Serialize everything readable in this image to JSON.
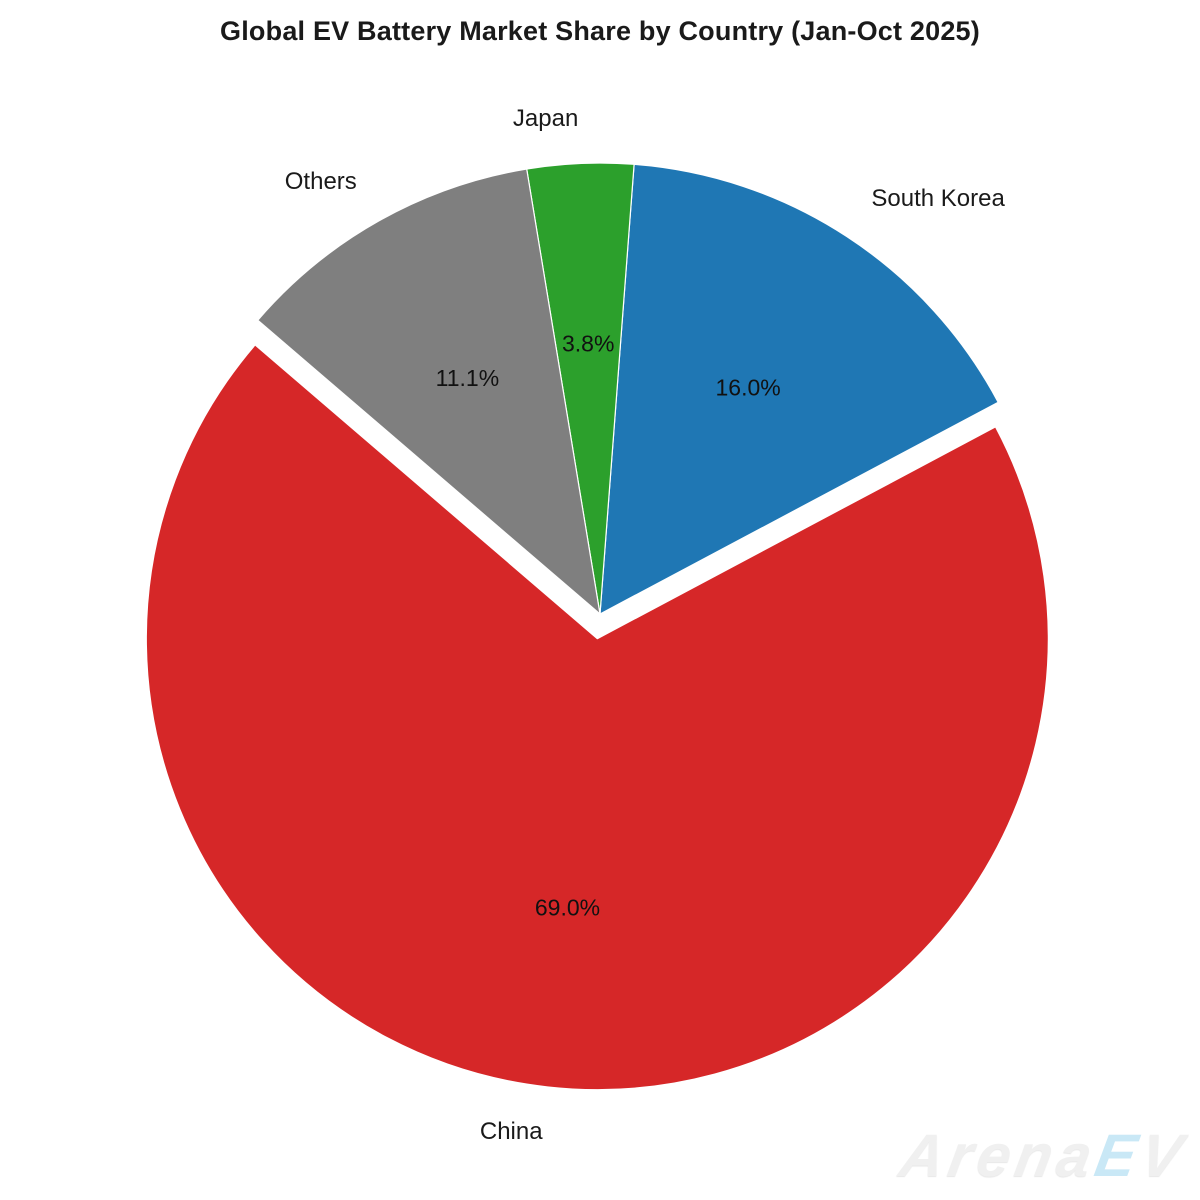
{
  "page": {
    "background_color": "#ffffff"
  },
  "chart_data": {
    "type": "pie",
    "title": "Global EV Battery Market Share by Country (Jan-Oct 2025)",
    "direction": "counterclockwise",
    "start_angle_deg": 28,
    "label_distance": 1.1,
    "pct_distance": 0.6,
    "legend": "none",
    "slices": [
      {
        "label": "South Korea",
        "value": 16.0,
        "pct_label": "16.0%",
        "color": "#1f77b4",
        "explode": 0
      },
      {
        "label": "Japan",
        "value": 3.8,
        "pct_label": "3.8%",
        "color": "#2ca02c",
        "explode": 0
      },
      {
        "label": "Others",
        "value": 11.1,
        "pct_label": "11.1%",
        "color": "#7f7f7f",
        "explode": 0
      },
      {
        "label": "China",
        "value": 69.0,
        "pct_label": "69.0%",
        "color": "#d62728",
        "explode": 0.055
      }
    ],
    "text_color": "#1a1a1a",
    "wedge_outline_color": "#ffffff"
  },
  "watermark": {
    "brand": "ArenaEV",
    "main": "Arena",
    "accent": "E",
    "tail": "V",
    "accent_color": "#c9e8f6",
    "text_color": "#f0f0f0"
  }
}
